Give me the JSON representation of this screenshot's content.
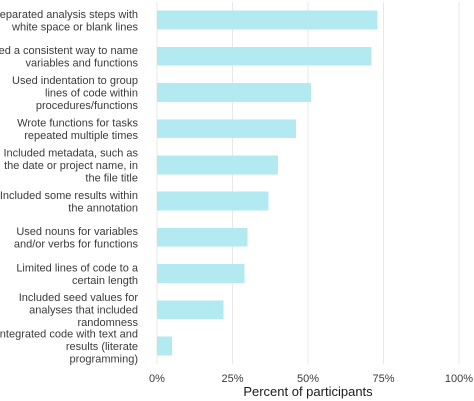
{
  "chart_data": {
    "type": "bar",
    "orientation": "horizontal",
    "categories": [
      "Separated analysis steps with white space or blank lines",
      "Used a consistent way to name variables and functions",
      "Used indentation to group lines of code within procedures/functions",
      "Wrote functions for tasks repeated multiple times",
      "Included metadata, such as the date or project name, in the file title",
      "Included some results within the annotation",
      "Used nouns for variables and/or verbs for functions",
      "Limited lines of code to a certain length",
      "Included seed values for analyses that included randomness",
      "Integrated code with text and results (literate programming)"
    ],
    "category_label_lines": [
      [
        "Separated analysis steps with",
        "white space or blank lines"
      ],
      [
        "Used a consistent way to name",
        "variables and functions"
      ],
      [
        "Used indentation to group",
        "lines of code within",
        "procedures/functions"
      ],
      [
        "Wrote functions for tasks",
        "repeated multiple times"
      ],
      [
        "Included metadata, such as",
        "the date or project name, in",
        "the file title"
      ],
      [
        "Included some results within",
        "the annotation"
      ],
      [
        "Used nouns for variables",
        "and/or verbs for functions"
      ],
      [
        "Limited lines of code to a",
        "certain length"
      ],
      [
        "Included seed values for",
        "analyses that included",
        "randomness"
      ],
      [
        "Integrated code with text and",
        "results (literate",
        "programming)"
      ]
    ],
    "values": [
      73,
      71,
      51,
      46,
      40,
      37,
      30,
      29,
      22,
      5
    ],
    "unit": "%",
    "xlabel": "Percent of participants",
    "ylabel": "",
    "xlim": [
      0,
      100
    ],
    "xticks": [
      0,
      25,
      50,
      75,
      100
    ],
    "xtick_labels": [
      "0%",
      "25%",
      "50%",
      "75%",
      "100%"
    ],
    "grid": true,
    "bar_color": "#b3e9f1",
    "legend": "none"
  }
}
